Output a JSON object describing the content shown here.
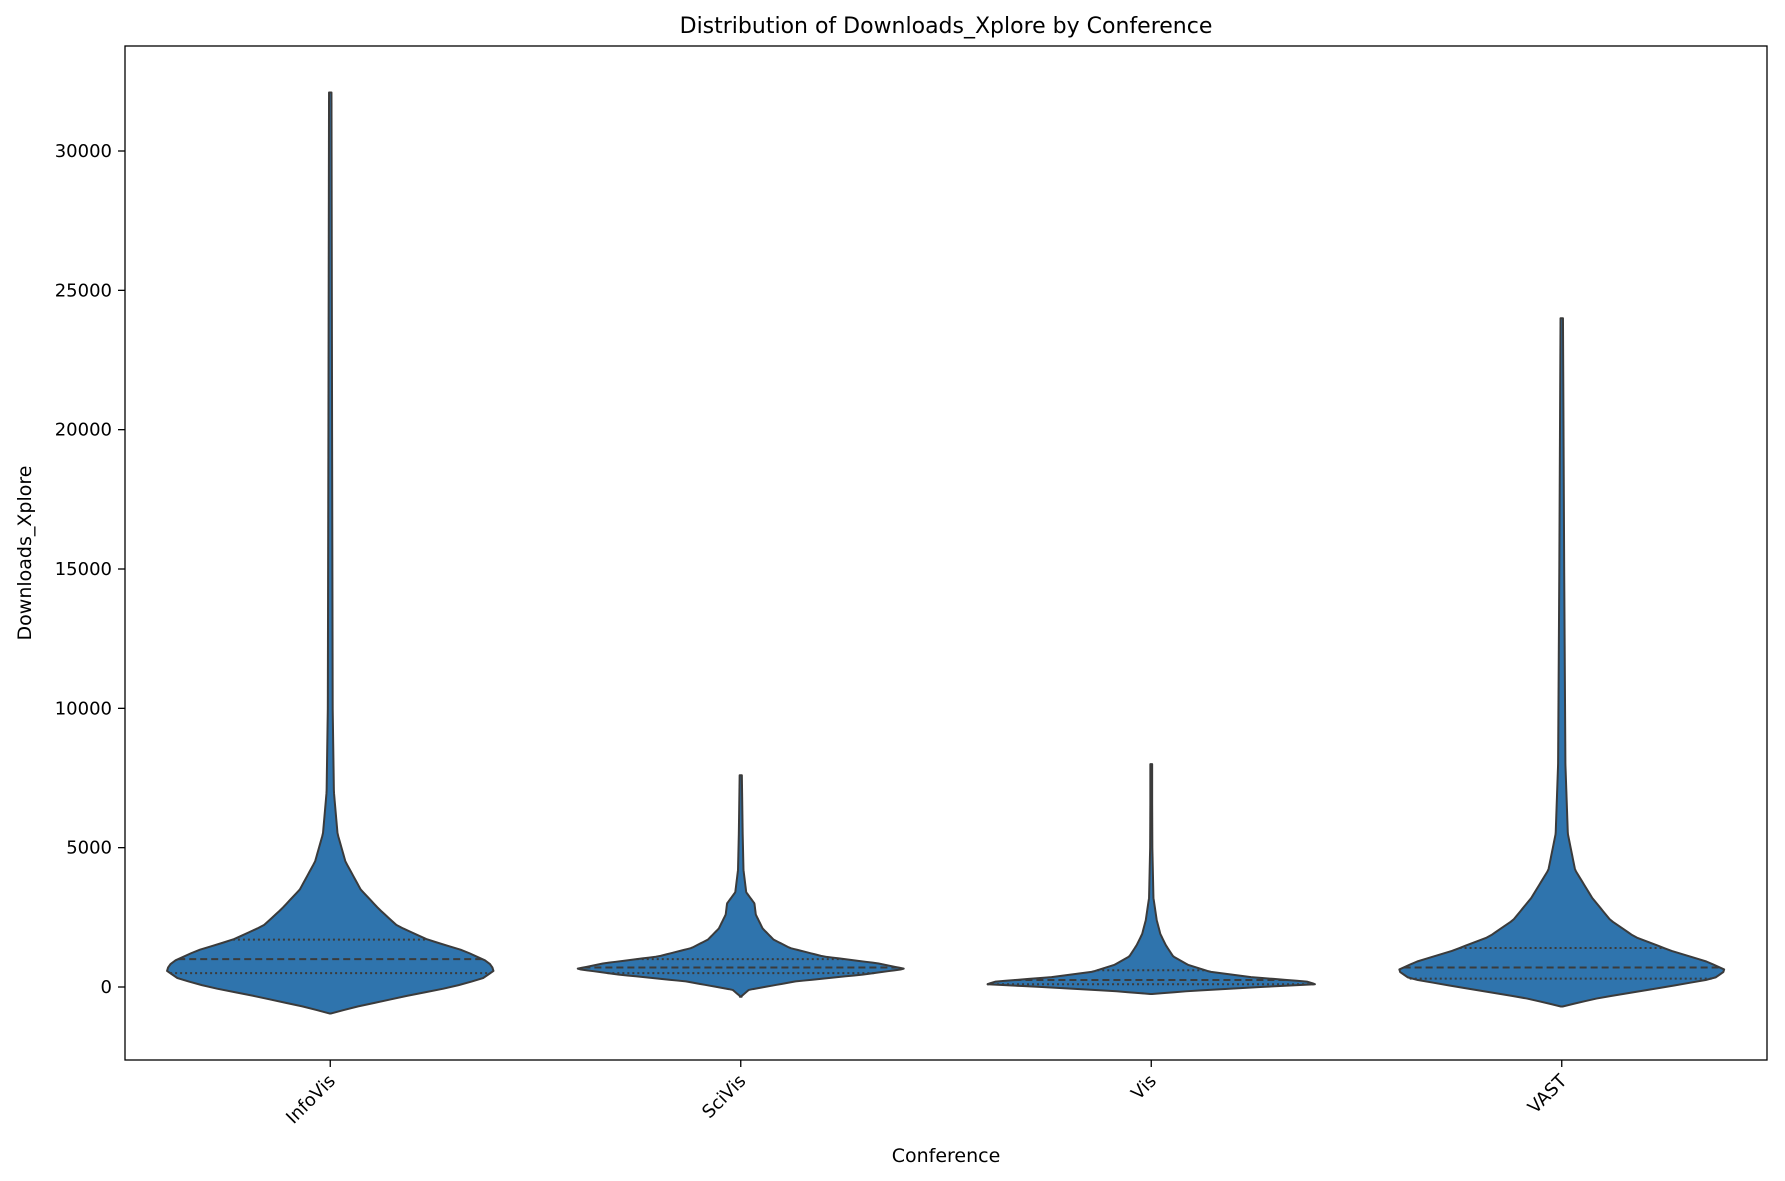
{
  "chart_data": {
    "type": "violin",
    "title": "Distribution of Downloads_Xplore by Conference",
    "xlabel": "Conference",
    "ylabel": "Downloads_Xplore",
    "ylim": [
      -2600,
      33300
    ],
    "yticks": [
      0,
      5000,
      10000,
      15000,
      20000,
      25000,
      30000
    ],
    "categories": [
      "InfoVis",
      "SciVis",
      "Vis",
      "VAST"
    ],
    "violin_color": "#2f74ad",
    "edge_color": "#3b3b3b",
    "grid": false,
    "legend": "none",
    "violins": [
      {
        "category": "InfoVis",
        "min": -950,
        "max": 32100,
        "q1": 500,
        "median": 1000,
        "q3": 1700,
        "profile": [
          [
            -950,
            0.0
          ],
          [
            -700,
            0.045
          ],
          [
            -300,
            0.13
          ],
          [
            0,
            0.2
          ],
          [
            300,
            0.25
          ],
          [
            600,
            0.27
          ],
          [
            900,
            0.26
          ],
          [
            1300,
            0.22
          ],
          [
            1700,
            0.16
          ],
          [
            2200,
            0.11
          ],
          [
            2800,
            0.08
          ],
          [
            3500,
            0.05
          ],
          [
            4500,
            0.025
          ],
          [
            5500,
            0.012
          ],
          [
            7000,
            0.006
          ],
          [
            10000,
            0.004
          ],
          [
            20000,
            0.003
          ],
          [
            32100,
            0.002
          ]
        ]
      },
      {
        "category": "SciVis",
        "min": -350,
        "max": 7600,
        "q1": 500,
        "median": 700,
        "q3": 1000,
        "profile": [
          [
            -350,
            0.0
          ],
          [
            -100,
            0.03
          ],
          [
            200,
            0.2
          ],
          [
            450,
            0.45
          ],
          [
            650,
            0.6
          ],
          [
            850,
            0.5
          ],
          [
            1100,
            0.3
          ],
          [
            1400,
            0.18
          ],
          [
            1700,
            0.12
          ],
          [
            2100,
            0.08
          ],
          [
            2600,
            0.055
          ],
          [
            3000,
            0.05
          ],
          [
            3400,
            0.02
          ],
          [
            4200,
            0.01
          ],
          [
            5500,
            0.007
          ],
          [
            7600,
            0.004
          ]
        ]
      },
      {
        "category": "Vis",
        "min": -250,
        "max": 8000,
        "q1": 100,
        "median": 250,
        "q3": 600,
        "profile": [
          [
            -250,
            0.0
          ],
          [
            -150,
            0.2
          ],
          [
            0,
            0.6
          ],
          [
            100,
            0.9
          ],
          [
            200,
            0.85
          ],
          [
            350,
            0.55
          ],
          [
            550,
            0.32
          ],
          [
            800,
            0.2
          ],
          [
            1100,
            0.12
          ],
          [
            1500,
            0.08
          ],
          [
            1900,
            0.05
          ],
          [
            2400,
            0.03
          ],
          [
            3200,
            0.012
          ],
          [
            5000,
            0.006
          ],
          [
            8000,
            0.004
          ]
        ]
      },
      {
        "category": "VAST",
        "min": -700,
        "max": 24000,
        "q1": 300,
        "median": 700,
        "q3": 1400,
        "profile": [
          [
            -700,
            0.0
          ],
          [
            -400,
            0.06
          ],
          [
            0,
            0.17
          ],
          [
            300,
            0.25
          ],
          [
            600,
            0.27
          ],
          [
            900,
            0.24
          ],
          [
            1300,
            0.18
          ],
          [
            1800,
            0.12
          ],
          [
            2400,
            0.08
          ],
          [
            3200,
            0.05
          ],
          [
            4200,
            0.022
          ],
          [
            5500,
            0.01
          ],
          [
            8000,
            0.006
          ],
          [
            15000,
            0.004
          ],
          [
            24000,
            0.002
          ]
        ]
      }
    ]
  }
}
